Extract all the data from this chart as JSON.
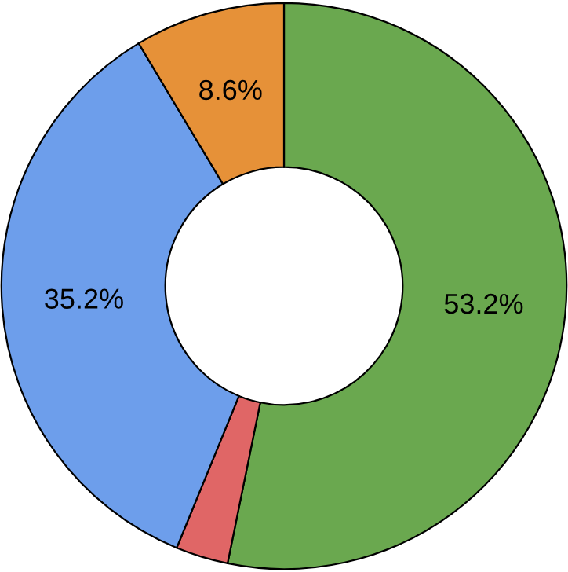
{
  "chart_data": {
    "type": "donut",
    "categories": [
      null,
      null,
      null,
      null
    ],
    "values": [
      53.2,
      3.0,
      35.2,
      8.6
    ],
    "value_labels": [
      "53.2%",
      null,
      "35.2%",
      "8.6%"
    ],
    "colors": [
      "#6aa84f",
      "#e06666",
      "#6d9eeb",
      "#e69138"
    ],
    "legend": false
  }
}
